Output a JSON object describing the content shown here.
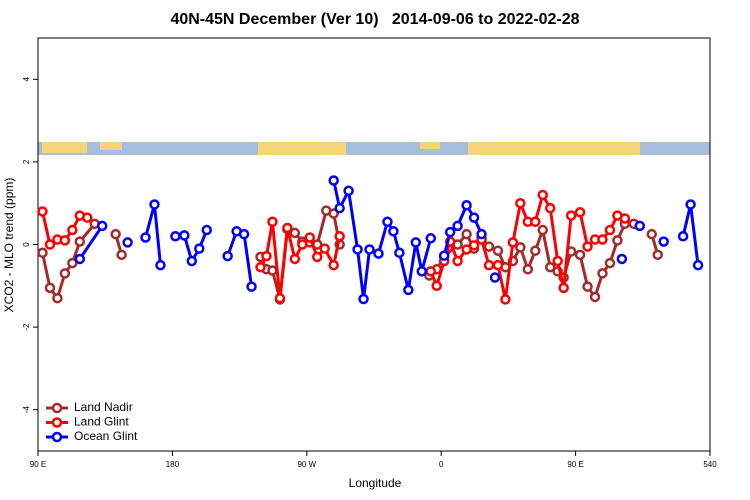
{
  "chart_data": {
    "type": "line",
    "title": "40N-45N December (Ver 10)   2014-09-06 to 2022-02-28",
    "x_label": "Longitude",
    "y_label": "XCO2 - MLO trend (ppm)",
    "xlim": [
      90,
      540
    ],
    "xticks": [
      {
        "value": 90,
        "label": "90 E"
      },
      180,
      {
        "value": 270,
        "label": "90 W"
      },
      {
        "value": 360,
        "label": "0"
      },
      {
        "value": 450,
        "label": "90 E"
      },
      540
    ],
    "ylim": [
      -5,
      5
    ],
    "yticks": [
      -4,
      -2,
      0,
      2,
      4
    ],
    "legend": "bottom-left",
    "series": [
      {
        "name": "Land Nadir",
        "color": "#a52a2a",
        "x": [
          93,
          98,
          103,
          108,
          113,
          118,
          128,
          null,
          142,
          146,
          null,
          239,
          243,
          247,
          252,
          257,
          262,
          267,
          272,
          277,
          283,
          288,
          292,
          null,
          352,
          357,
          362,
          371,
          377,
          382,
          387,
          392,
          398,
          403,
          408,
          413,
          418,
          423,
          428,
          433,
          438,
          442,
          447,
          453,
          458,
          463,
          468,
          473,
          478,
          483,
          489,
          null,
          501,
          505
        ],
        "values": [
          -0.2,
          -1.05,
          -1.3,
          -0.7,
          -0.45,
          0.07,
          0.5,
          null,
          0.25,
          -0.25,
          null,
          -0.3,
          -0.6,
          -0.63,
          -1.33,
          0.37,
          0.28,
          0.07,
          0.05,
          0.0,
          0.82,
          0.75,
          0.0,
          null,
          -0.75,
          -0.6,
          -0.3,
          0.0,
          0.25,
          -0.1,
          0.17,
          -0.05,
          -0.15,
          -0.55,
          -0.4,
          -0.07,
          -0.6,
          -0.15,
          0.35,
          -0.55,
          -0.65,
          -0.8,
          -0.17,
          -0.25,
          -1.02,
          -1.27,
          -0.7,
          -0.45,
          0.1,
          0.5,
          0.5,
          null,
          0.25,
          -0.25
        ]
      },
      {
        "name": "Land Glint",
        "color": "#ff0000",
        "x": [
          93,
          98,
          103,
          108,
          113,
          118,
          123,
          null,
          239,
          243,
          247,
          252,
          257,
          262,
          267,
          272,
          277,
          282,
          288,
          292,
          null,
          353,
          357,
          362,
          366,
          371,
          377,
          382,
          387,
          392,
          398,
          403,
          408,
          413,
          418,
          423,
          428,
          433,
          438,
          442,
          447,
          453,
          458,
          463,
          468,
          473,
          478,
          483
        ],
        "values": [
          0.8,
          0.0,
          0.12,
          0.1,
          0.35,
          0.7,
          0.65,
          null,
          -0.55,
          -0.28,
          0.55,
          -1.3,
          0.4,
          -0.35,
          0.0,
          0.17,
          -0.3,
          -0.1,
          -0.5,
          0.2,
          null,
          -0.65,
          -1.0,
          -0.4,
          0.07,
          -0.4,
          -0.12,
          -0.02,
          0.12,
          -0.5,
          -0.5,
          -1.33,
          0.05,
          1.0,
          0.55,
          0.55,
          1.2,
          0.88,
          -0.4,
          -1.05,
          0.7,
          0.78,
          -0.05,
          0.12,
          0.12,
          0.35,
          0.7,
          0.63
        ]
      },
      {
        "name": "Ocean Glint",
        "color": "#0000ff",
        "x": [
          118,
          133,
          null,
          150,
          null,
          162,
          168,
          172,
          null,
          182,
          188,
          193,
          198,
          203,
          null,
          217,
          223,
          228,
          233,
          null,
          288,
          292,
          298,
          304,
          308,
          312,
          318,
          324,
          328,
          332,
          338,
          343,
          347,
          353,
          null,
          362,
          366,
          371,
          377,
          382,
          387,
          null,
          396,
          null,
          481,
          null,
          493,
          null,
          509,
          null,
          522,
          527,
          532
        ],
        "values": [
          -0.35,
          0.45,
          null,
          0.05,
          null,
          0.17,
          0.97,
          -0.5,
          null,
          0.2,
          0.22,
          -0.4,
          -0.1,
          0.35,
          null,
          -0.28,
          0.32,
          0.25,
          -1.02,
          null,
          1.55,
          0.88,
          1.3,
          -0.12,
          -1.32,
          -0.12,
          -0.22,
          0.55,
          0.32,
          -0.2,
          -1.1,
          0.05,
          -0.65,
          0.15,
          null,
          -0.27,
          0.3,
          0.45,
          0.95,
          0.65,
          0.25,
          null,
          -0.8,
          null,
          -0.35,
          null,
          0.45,
          null,
          0.07,
          null,
          0.2,
          0.97,
          -0.5
        ]
      }
    ]
  }
}
